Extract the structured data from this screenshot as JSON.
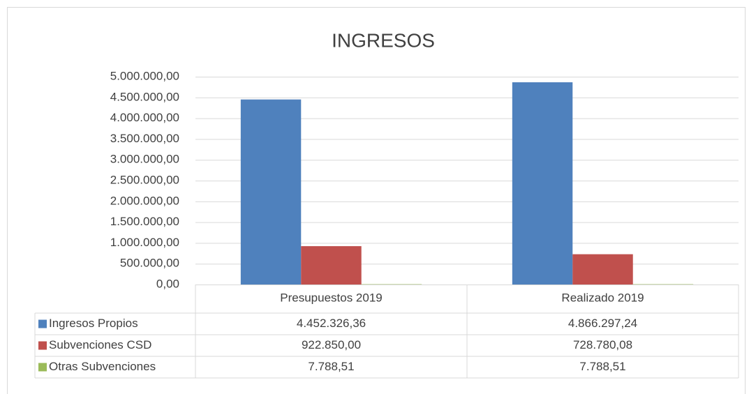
{
  "chart_data": {
    "type": "bar",
    "title": "INGRESOS",
    "categories": [
      "Presupuestos 2019",
      "Realizado 2019"
    ],
    "series": [
      {
        "name": "Ingresos Propios",
        "color": "#4f81bd",
        "values": [
          4452326.36,
          4866297.24
        ],
        "value_labels": [
          "4.452.326,36",
          "4.866.297,24"
        ]
      },
      {
        "name": "Subvenciones CSD",
        "color": "#c0504d",
        "values": [
          922850.0,
          728780.08
        ],
        "value_labels": [
          "922.850,00",
          "728.780,08"
        ]
      },
      {
        "name": "Otras Subvenciones",
        "color": "#9bbb59",
        "values": [
          7788.51,
          7788.51
        ],
        "value_labels": [
          "7.788,51",
          "7.788,51"
        ]
      }
    ],
    "ylim": [
      0,
      5000000
    ],
    "yticks": [
      {
        "value": 0,
        "label": "0,00"
      },
      {
        "value": 500000,
        "label": "500.000,00"
      },
      {
        "value": 1000000,
        "label": "1.000.000,00"
      },
      {
        "value": 1500000,
        "label": "1.500.000,00"
      },
      {
        "value": 2000000,
        "label": "2.000.000,00"
      },
      {
        "value": 2500000,
        "label": "2.500.000,00"
      },
      {
        "value": 3000000,
        "label": "3.000.000,00"
      },
      {
        "value": 3500000,
        "label": "3.500.000,00"
      },
      {
        "value": 4000000,
        "label": "4.000.000,00"
      },
      {
        "value": 4500000,
        "label": "4.500.000,00"
      },
      {
        "value": 5000000,
        "label": "5.000.000,00"
      }
    ],
    "grid": true
  }
}
